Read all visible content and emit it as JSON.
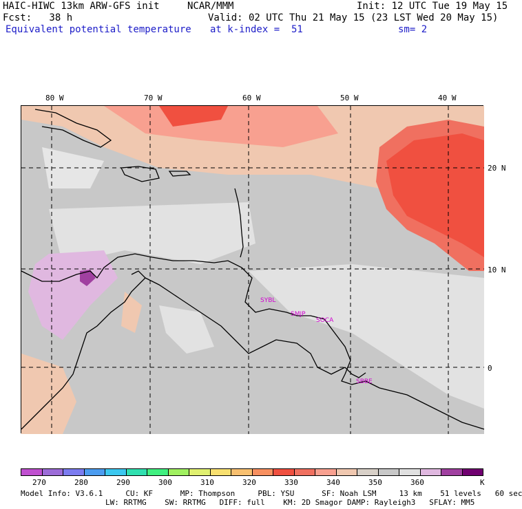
{
  "header": {
    "line1_left": "HAIC-HIWC 13km ARW-GFS init",
    "line1_mid": "NCAR/MMM",
    "line1_right": "Init: 12 UTC Tue 19 May 15",
    "line2_left": "Fcst:   38 h",
    "line2_right": "Valid: 02 UTC Thu 21 May 15 (23 LST Wed 20 May 15)",
    "line3_left": "Equivalent potential temperature",
    "line3_mid": "at k-index =  51",
    "line3_right": "sm= 2"
  },
  "map": {
    "lon_labels": [
      "80 W",
      "70 W",
      "60 W",
      "50 W",
      "40 W"
    ],
    "lat_labels": [
      "20 N",
      "10 N",
      "0"
    ],
    "stations": [
      "SYBL",
      "SMJP",
      "SOCA",
      "SBBE"
    ]
  },
  "colorbar": {
    "colors": [
      "#c050d0",
      "#9c6cd8",
      "#7c7cf0",
      "#4c9cf0",
      "#3cc8f0",
      "#30e0b0",
      "#40f080",
      "#a0f060",
      "#e0f070",
      "#f8e070",
      "#f8c070",
      "#f89060",
      "#f05040",
      "#f07060",
      "#f8a090",
      "#f0c8b0",
      "#d8d0c8",
      "#c8c8c8",
      "#e0e0e0",
      "#e0b8e0",
      "#a040a0",
      "#700070"
    ],
    "tick_labels": [
      "270",
      "280",
      "290",
      "300",
      "310",
      "320",
      "330",
      "340",
      "350",
      "360"
    ],
    "unit": "K"
  },
  "footer": {
    "line1": "Model Info: V3.6.1     CU: KF      MP: Thompson     PBL: YSU      SF: Noah LSM     13 km    51 levels   60 sec",
    "line2": "LW: RRTMG    SW: RRTMG   DIFF: full    KM: 2D Smagor DAMP: Rayleigh3   SFLAY: MM5"
  }
}
